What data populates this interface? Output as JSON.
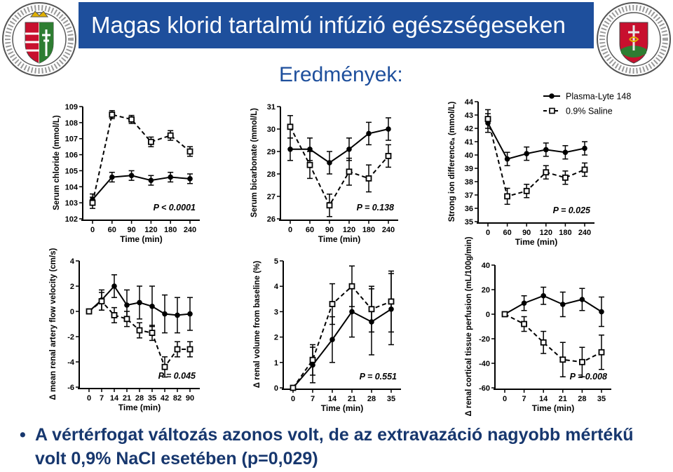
{
  "title": "Magas klorid tartalmú infúzió egészségeseken",
  "subtitle": "Eredmények:",
  "conclusion": {
    "bullet": "•",
    "text": "A vértérfogat változás azonos volt, de az extravazáció nagyobb mértékű volt 0,9% NaCl esetében (p=0,029)"
  },
  "colors": {
    "title_bg": "#1e4f9c",
    "title_text": "#ffffff",
    "subtitle": "#1e4f9c",
    "conclusion": "#17376e",
    "plot": "#000000"
  },
  "logos": {
    "left": "university-seal",
    "right": "university-seal"
  },
  "chart_data": [
    {
      "type": "line",
      "ylabel": "Serum chloride (mmol/L)",
      "xlabel": "Time (min)",
      "categories": [
        "0",
        "60",
        "90",
        "120",
        "180",
        "240"
      ],
      "yticks": [
        102,
        103,
        104,
        105,
        106,
        107,
        108,
        109
      ],
      "ylim": [
        102,
        109
      ],
      "legend": {
        "position": "none"
      },
      "annotation": "P < 0.0001",
      "series": [
        {
          "name": "Plasma-Lyte 148",
          "style": "solid-circle",
          "values": [
            103.2,
            104.6,
            104.7,
            104.4,
            104.6,
            104.5
          ],
          "err": [
            0.35,
            0.3,
            0.3,
            0.3,
            0.3,
            0.3
          ]
        },
        {
          "name": "0.9% Saline",
          "style": "dashed-square",
          "values": [
            103.0,
            108.5,
            108.2,
            106.8,
            107.2,
            106.2
          ],
          "err": [
            0.35,
            0.25,
            0.25,
            0.3,
            0.3,
            0.3
          ]
        }
      ]
    },
    {
      "type": "line",
      "ylabel": "Serum bicarbonate (mmol/L)",
      "xlabel": "Time (min)",
      "categories": [
        "0",
        "60",
        "90",
        "120",
        "180",
        "240"
      ],
      "yticks": [
        26,
        27,
        28,
        29,
        30,
        31
      ],
      "ylim": [
        26,
        31
      ],
      "legend": {
        "position": "none"
      },
      "annotation": "P = 0.138",
      "series": [
        {
          "name": "Plasma-Lyte 148",
          "style": "solid-circle",
          "values": [
            29.1,
            29.1,
            28.5,
            29.1,
            29.8,
            30.0
          ],
          "err": [
            0.5,
            0.5,
            0.5,
            0.5,
            0.5,
            0.5
          ]
        },
        {
          "name": "0.9% Saline",
          "style": "dashed-square",
          "values": [
            30.1,
            28.4,
            26.6,
            28.1,
            27.8,
            28.8
          ],
          "err": [
            0.5,
            0.6,
            0.5,
            0.6,
            0.6,
            0.5
          ]
        }
      ]
    },
    {
      "type": "line",
      "ylabel": "Strong ion differenceₐ (mmol/L)",
      "xlabel": "Time (min)",
      "categories": [
        "0",
        "60",
        "90",
        "120",
        "180",
        "240"
      ],
      "yticks": [
        35,
        36,
        37,
        38,
        39,
        40,
        41,
        42,
        43,
        44
      ],
      "ylim": [
        35,
        44
      ],
      "legend": {
        "position": "top-right"
      },
      "annotation": "P = 0.025",
      "series": [
        {
          "name": "Plasma-Lyte 148",
          "style": "solid-circle",
          "values": [
            42.4,
            39.7,
            40.1,
            40.4,
            40.2,
            40.5
          ],
          "err": [
            0.7,
            0.5,
            0.5,
            0.5,
            0.5,
            0.5
          ]
        },
        {
          "name": "0.9% Saline",
          "style": "dashed-square",
          "values": [
            42.7,
            36.9,
            37.3,
            38.7,
            38.3,
            38.9
          ],
          "err": [
            0.7,
            0.6,
            0.5,
            0.5,
            0.5,
            0.5
          ]
        }
      ]
    },
    {
      "type": "line",
      "ylabel": "Δ mean renal artery flow velocity (cm/s)",
      "xlabel": "Time (min)",
      "categories": [
        "0",
        "7",
        "14",
        "21",
        "28",
        "35",
        "42",
        "82",
        "90"
      ],
      "yticks": [
        -6,
        -4,
        -2,
        0,
        2,
        4
      ],
      "ylim": [
        -6,
        4
      ],
      "legend": {
        "position": "none"
      },
      "annotation": "P = 0.045",
      "series": [
        {
          "name": "Plasma-Lyte 148",
          "style": "solid-circle",
          "values": [
            0,
            0.9,
            2.0,
            0.5,
            0.7,
            0.4,
            -0.2,
            -0.3,
            -0.2
          ],
          "err": [
            0,
            0.8,
            0.9,
            1.2,
            1.3,
            1.6,
            1.5,
            1.4,
            1.3
          ]
        },
        {
          "name": "0.9% Saline",
          "style": "dashed-square",
          "values": [
            0,
            0.8,
            -0.3,
            -0.6,
            -1.5,
            -1.7,
            -4.4,
            -3.0,
            -3.0
          ],
          "err": [
            0,
            0.7,
            0.6,
            0.6,
            0.6,
            0.6,
            0.8,
            0.6,
            0.6
          ]
        }
      ]
    },
    {
      "type": "line",
      "ylabel": "Δ renal volume from baseline (%)",
      "xlabel": "Time (min)",
      "categories": [
        "0",
        "7",
        "14",
        "21",
        "28",
        "35"
      ],
      "yticks": [
        0,
        1,
        2,
        3,
        4,
        5
      ],
      "ylim": [
        0,
        5
      ],
      "legend": {
        "position": "none"
      },
      "annotation": "P = 0.551",
      "series": [
        {
          "name": "Plasma-Lyte 148",
          "style": "solid-circle",
          "values": [
            0,
            0.9,
            1.9,
            3.0,
            2.6,
            3.1
          ],
          "err": [
            0,
            0.7,
            0.9,
            1.0,
            1.3,
            1.4
          ]
        },
        {
          "name": "0.9% Saline",
          "style": "dashed-square",
          "values": [
            0,
            1.1,
            3.3,
            4.0,
            3.1,
            3.4
          ],
          "err": [
            0,
            0.6,
            0.8,
            0.8,
            0.9,
            1.2
          ]
        }
      ]
    },
    {
      "type": "line",
      "ylabel": "Δ renal cortical tissue perfusion (mL/100g/min)",
      "xlabel": "Time (min)",
      "categories": [
        "0",
        "7",
        "14",
        "21",
        "28",
        "35"
      ],
      "yticks": [
        -60,
        -40,
        -20,
        0,
        20,
        40
      ],
      "ylim": [
        -60,
        40
      ],
      "legend": {
        "position": "none"
      },
      "annotation": "P = 0.008",
      "series": [
        {
          "name": "Plasma-Lyte 148",
          "style": "solid-circle",
          "values": [
            0,
            9,
            15,
            8,
            12,
            2
          ],
          "err": [
            0,
            6,
            7,
            10,
            9,
            12
          ]
        },
        {
          "name": "0.9% Saline",
          "style": "dashed-square",
          "values": [
            0,
            -8,
            -23,
            -37,
            -39,
            -31
          ],
          "err": [
            0,
            6,
            9,
            14,
            12,
            14
          ]
        }
      ]
    }
  ]
}
